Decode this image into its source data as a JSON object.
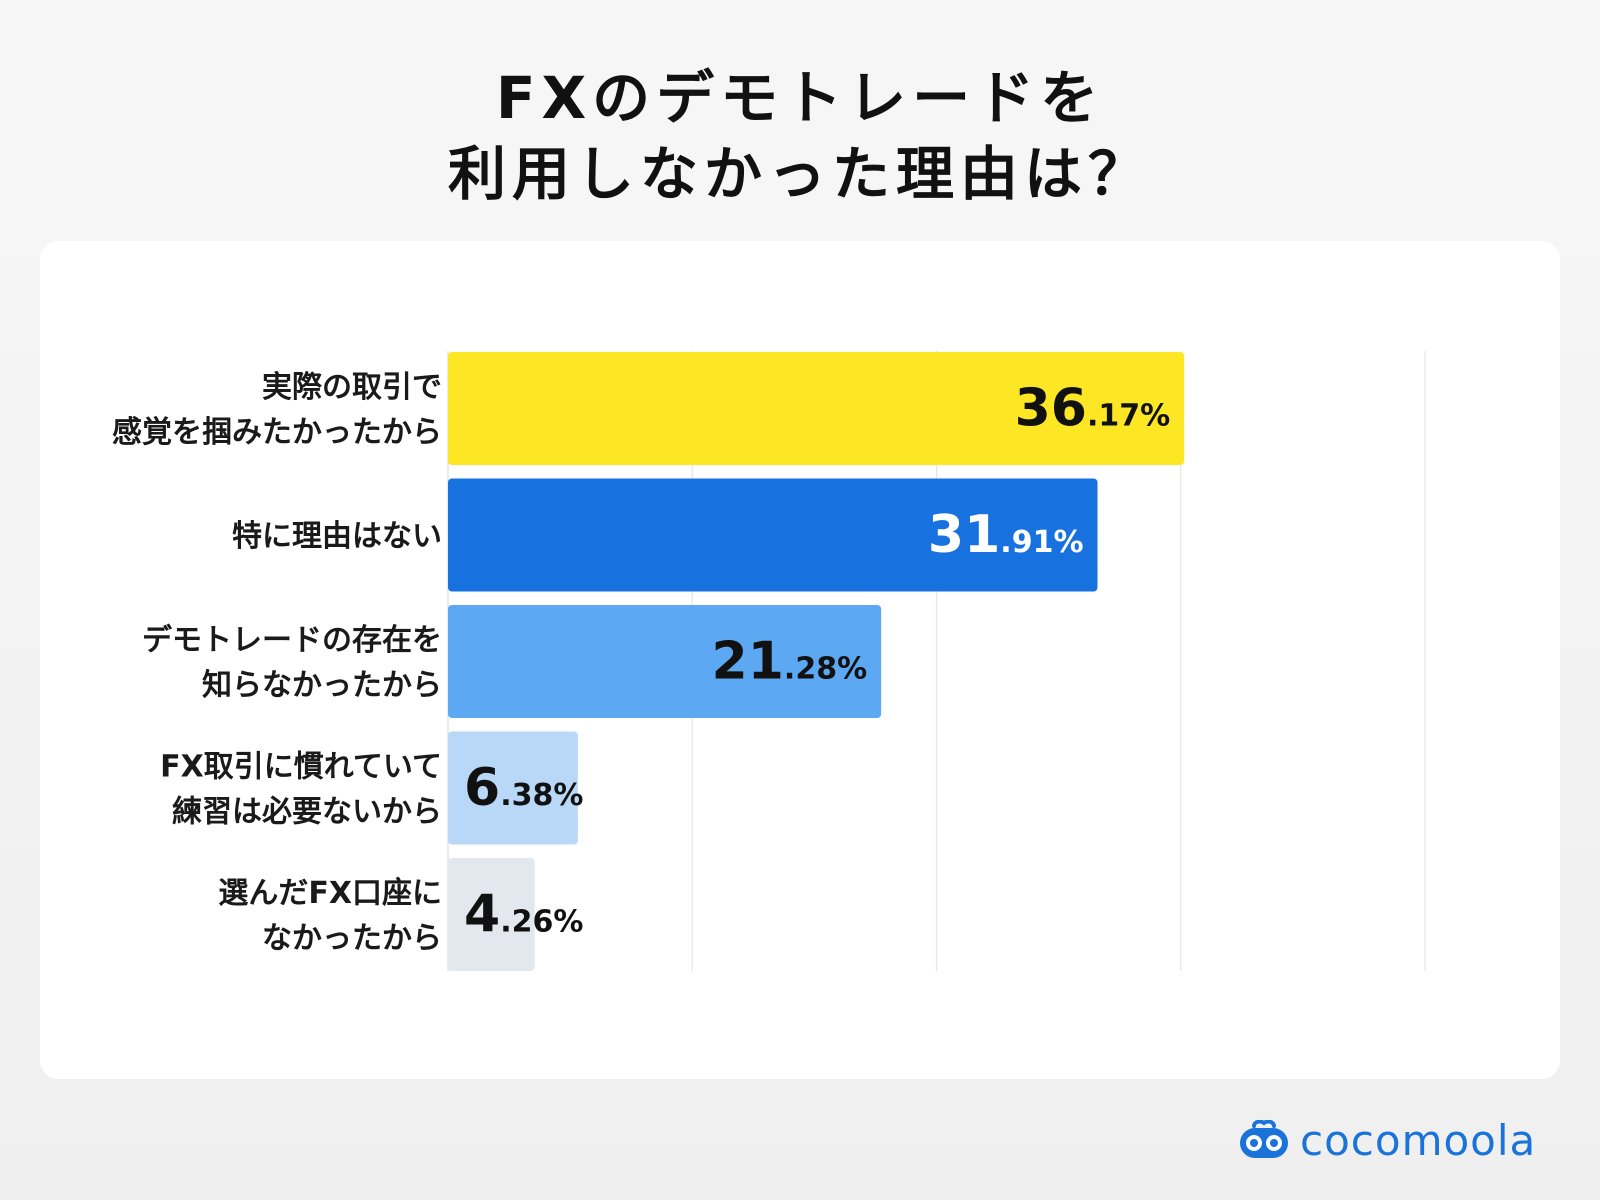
{
  "title": {
    "line1": "FXのデモトレードを",
    "line2": "利用しなかった理由は？"
  },
  "brand": {
    "name": "cocomoola",
    "icon": "cocomoola-logo-icon",
    "color": "#1a73d9"
  },
  "chart_data": {
    "type": "bar",
    "orientation": "horizontal",
    "title": "FXのデモトレードを利用しなかった理由は？",
    "xlabel": "",
    "ylabel": "",
    "xlim": [
      0,
      48
    ],
    "grid": true,
    "gridlines": [
      12,
      24,
      36,
      48
    ],
    "categories": [
      [
        "実際の取引で",
        "感覚を掴みたかったから"
      ],
      [
        "特に理由はない"
      ],
      [
        "デモトレードの存在を",
        "知らなかったから"
      ],
      [
        "FX取引に慣れていて",
        "練習は必要ないから"
      ],
      [
        "選んだFX口座に",
        "なかったから"
      ]
    ],
    "values": [
      36.17,
      31.91,
      21.28,
      6.38,
      4.26
    ],
    "labels": [
      {
        "int": "36",
        "dec": ".17%"
      },
      {
        "int": "31",
        "dec": ".91%"
      },
      {
        "int": "21",
        "dec": ".28%"
      },
      {
        "int": "6",
        "dec": ".38%"
      },
      {
        "int": "4",
        "dec": ".26%"
      }
    ],
    "colors": [
      "#fde725",
      "#1772e0",
      "#5ca8f2",
      "#b9d8f8",
      "#e3e7ee"
    ],
    "label_colors": [
      "#111111",
      "#ffffff",
      "#111111",
      "#111111",
      "#111111"
    ]
  }
}
